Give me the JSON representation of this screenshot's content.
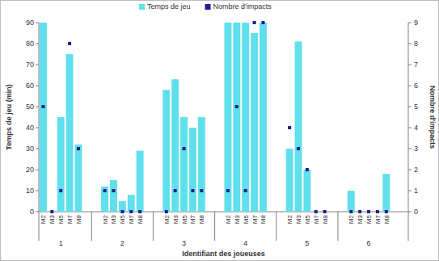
{
  "chart_data": {
    "type": "bar",
    "x_label": "Identifiant des joueuses",
    "y_label": "Temps de jeu (min)",
    "y2_label": "Nombre d'impacts",
    "groups": [
      "1",
      "2",
      "3",
      "4",
      "5",
      "6"
    ],
    "categories": [
      "M2",
      "M3",
      "M5",
      "M7",
      "M8",
      null,
      null,
      "M2",
      "M3",
      "M5",
      "M7",
      "M8",
      null,
      null,
      "M2",
      "M3",
      "M5",
      "M7",
      "M8",
      null,
      null,
      "M2",
      "M3",
      "M5",
      "M7",
      "M8",
      null,
      null,
      "M2",
      "M3",
      "M5",
      "M7",
      "M8",
      null,
      null,
      "M2",
      "M3",
      "M5",
      "M7",
      "M8",
      null,
      null
    ],
    "series": [
      {
        "name": "Temps de jeu",
        "type": "bar",
        "color": "#5fe0ec",
        "values": [
          90,
          0,
          45,
          75,
          32,
          null,
          null,
          12,
          15,
          5,
          8,
          29,
          null,
          null,
          58,
          63,
          45,
          40,
          45,
          null,
          null,
          90,
          90,
          90,
          85,
          90,
          null,
          null,
          30,
          81,
          20,
          0,
          0,
          null,
          null,
          10,
          0,
          0,
          0,
          18,
          null,
          null
        ]
      },
      {
        "name": "Nombre d'impacts",
        "type": "scatter",
        "marker": "square",
        "axis": "y2",
        "color": "#1f1f8f",
        "values": [
          5,
          0,
          1,
          8,
          3,
          null,
          null,
          1,
          1,
          0,
          0,
          0,
          null,
          null,
          0,
          1,
          3,
          1,
          1,
          null,
          null,
          1,
          5,
          1,
          9,
          9,
          null,
          null,
          4,
          3,
          2,
          0,
          0,
          null,
          null,
          0,
          0,
          0,
          0,
          0,
          null,
          null
        ]
      }
    ],
    "ylim": [
      0,
      90
    ],
    "yticks": [
      0,
      10,
      20,
      30,
      40,
      50,
      60,
      70,
      80,
      90
    ],
    "y2lim": [
      0,
      9
    ],
    "y2ticks": [
      0,
      1,
      2,
      3,
      4,
      5,
      6,
      7,
      8,
      9
    ],
    "legend": "top",
    "grid": false
  }
}
